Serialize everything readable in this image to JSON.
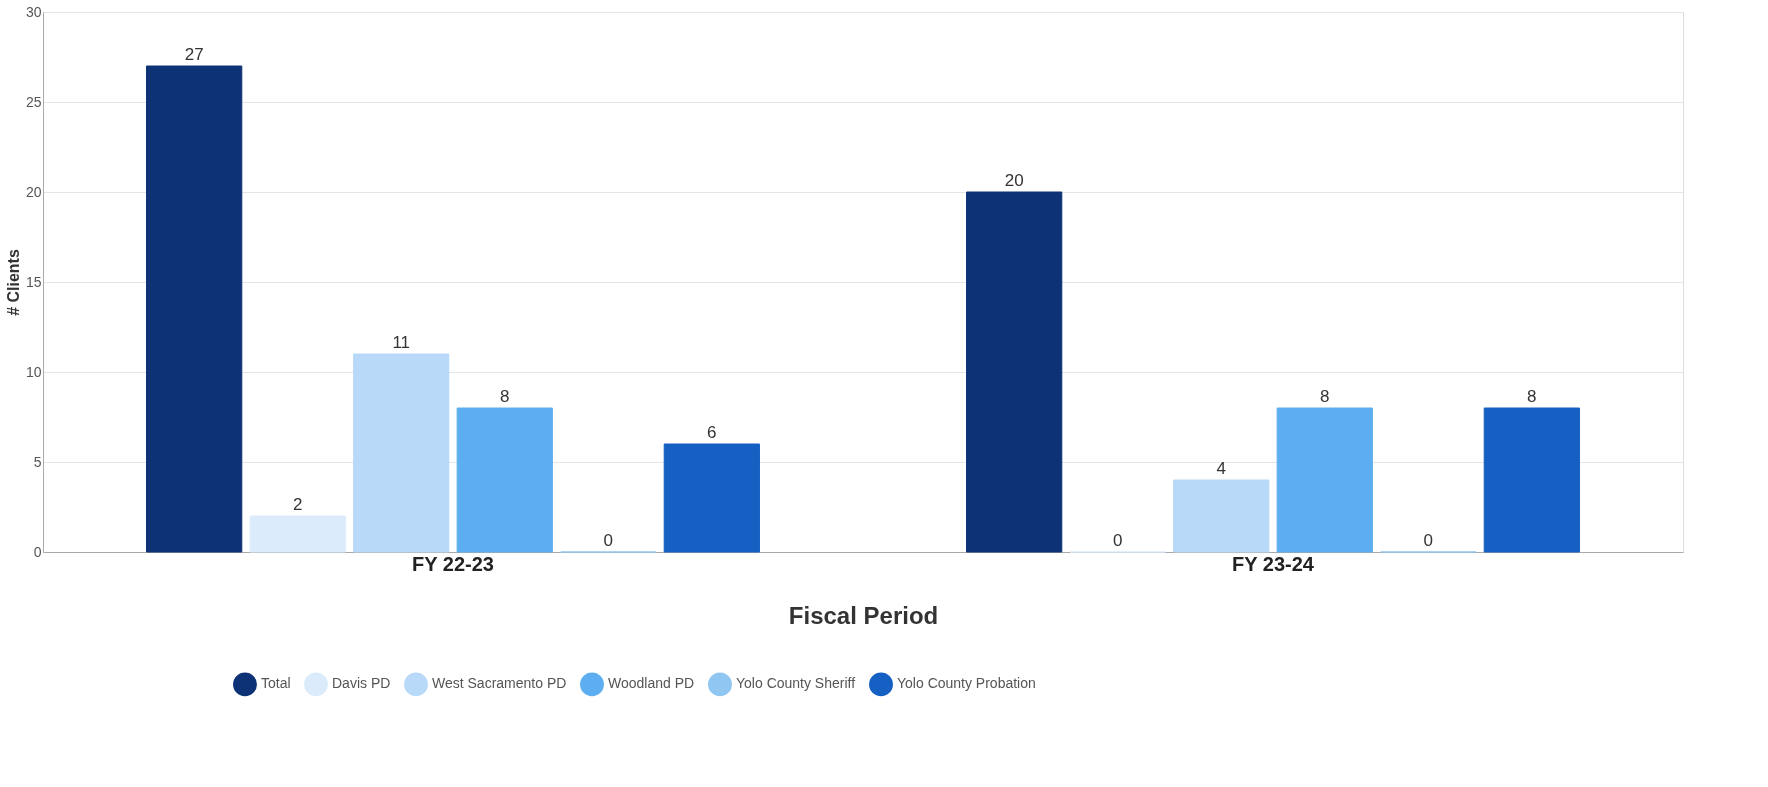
{
  "chart_data": {
    "type": "bar",
    "xlabel": "Fiscal Period",
    "ylabel": "# Clients",
    "categories": [
      "FY 22-23",
      "FY 23-24"
    ],
    "series": [
      {
        "name": "Total",
        "color": "#0d3275",
        "values": [
          27,
          20
        ]
      },
      {
        "name": "Davis PD",
        "color": "#dcebfb",
        "values": [
          2,
          0
        ]
      },
      {
        "name": "West Sacramento PD",
        "color": "#b8d9f7",
        "values": [
          11,
          4
        ]
      },
      {
        "name": "Woodland PD",
        "color": "#5caef0",
        "values": [
          8,
          8
        ]
      },
      {
        "name": "Yolo County Sheriff",
        "color": "#8fc6f2",
        "values": [
          0,
          0
        ]
      },
      {
        "name": "Yolo County Probation",
        "color": "#1560c2",
        "values": [
          6,
          8
        ]
      }
    ],
    "ylim": [
      0,
      30
    ],
    "yticks": [
      0,
      5,
      10,
      15,
      20,
      25,
      30
    ],
    "grid": "y",
    "legend": "bottom",
    "data_labels": true
  }
}
